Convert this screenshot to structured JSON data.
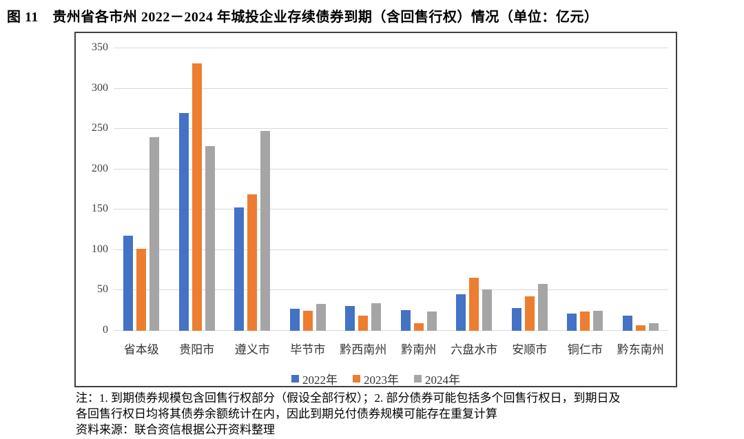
{
  "title": "图 11　贵州省各市州 2022－2024 年城投企业存续债券到期（含回售行权）情况（单位：亿元）",
  "chart_data": {
    "type": "bar",
    "title": "贵州省各市州 2022－2024 年城投企业存续债券到期（含回售行权）情况",
    "unit": "亿元",
    "categories": [
      "省本级",
      "贵阳市",
      "遵义市",
      "毕节市",
      "黔西南州",
      "黔南州",
      "六盘水市",
      "安顺市",
      "铜仁市",
      "黔东南州"
    ],
    "series": [
      {
        "name": "2022年",
        "color": "#4472C4",
        "values": [
          118,
          270,
          153,
          27,
          31,
          26,
          45,
          28,
          21,
          19
        ]
      },
      {
        "name": "2023年",
        "color": "#ED7D31",
        "values": [
          102,
          331,
          169,
          25,
          19,
          9,
          66,
          43,
          24,
          7
        ]
      },
      {
        "name": "2024年",
        "color": "#A5A5A5",
        "values": [
          240,
          229,
          248,
          33,
          34,
          24,
          51,
          58,
          25,
          9
        ]
      }
    ],
    "ylim": [
      0,
      350
    ],
    "yticks": [
      0,
      50,
      100,
      150,
      200,
      250,
      300,
      350
    ],
    "xlabel": "",
    "ylabel": "",
    "grid": true,
    "legend_position": "bottom"
  },
  "notes": {
    "line1": "注：1. 到期债券规模包含回售行权部分（假设全部行权）；2. 部分债券可能包括多个回售行权日，到期日及",
    "line2": "各回售行权日均将其债券余额统计在内，因此到期兑付债券规模可能存在重复计算",
    "line3": "资料来源：联合资信根据公开资料整理"
  },
  "colors": {
    "grid": "#d9d9d9",
    "axis_text": "#404040",
    "box_border": "#3f3f3f"
  }
}
